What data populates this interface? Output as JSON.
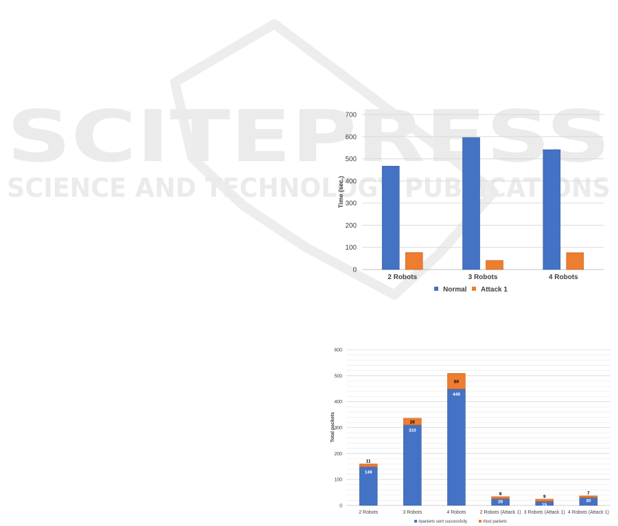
{
  "watermark": {
    "brand": "SCITEPRESS",
    "tagline": "SCIENCE AND TECHNOLOGY PUBLICATIONS"
  },
  "colors": {
    "blue": "#4472c4",
    "orange": "#ed7d31",
    "grid": "#d9d9d9",
    "text": "#404040",
    "watermark": "#ececec"
  },
  "chart_data": [
    {
      "type": "bar",
      "title": "",
      "xlabel": "",
      "ylabel": "Time (sec.)",
      "ylim": [
        0,
        700
      ],
      "yticks": [
        0,
        100,
        200,
        300,
        400,
        500,
        600,
        700
      ],
      "categories": [
        "2 Robots",
        "3 Robots",
        "4 Robots"
      ],
      "series": [
        {
          "name": "Normal",
          "color": "#4472c4",
          "values": [
            467,
            596,
            541
          ]
        },
        {
          "name": "Attack 1",
          "color": "#ed7d31",
          "values": [
            77,
            41,
            76
          ]
        }
      ],
      "legend": "bottom",
      "grid": true
    },
    {
      "type": "bar",
      "stacked": true,
      "title": "",
      "xlabel": "",
      "ylabel": "Total packets",
      "ylim": [
        0,
        600
      ],
      "yticks": [
        0,
        100,
        200,
        300,
        400,
        500,
        600
      ],
      "categories": [
        "2 Robots",
        "3 Robots",
        "4 Robots",
        "2 Robots (Attack 1)",
        "3 Robots (Attack 1)",
        "4 Robots (Attack 1)"
      ],
      "series": [
        {
          "name": "#packets sent successfully",
          "color": "#4472c4",
          "values": [
            149,
            310,
            449,
            26,
            15,
            30
          ]
        },
        {
          "name": "#lost packets",
          "color": "#ed7d31",
          "values": [
            11,
            26,
            60,
            8,
            9,
            7
          ]
        }
      ],
      "legend": "bottom",
      "grid": true
    }
  ]
}
